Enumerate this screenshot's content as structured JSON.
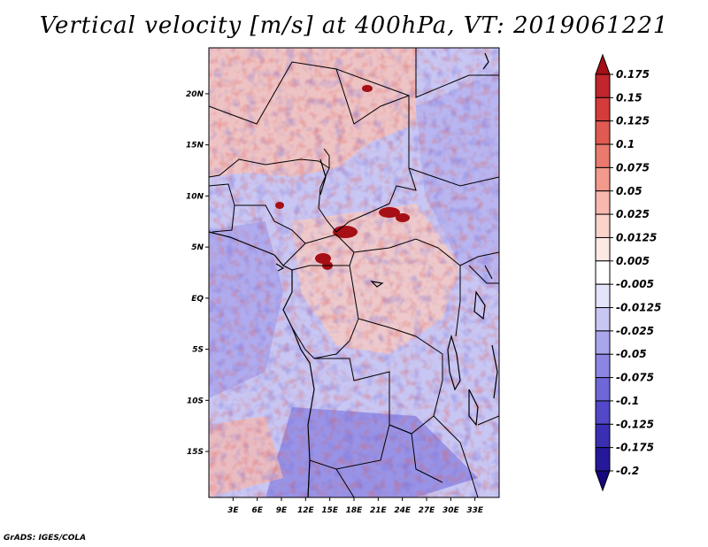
{
  "title": "Vertical velocity [m/s] at 400hPa, VT: 2019061221",
  "credit": "GrADS: IGES/COLA",
  "map": {
    "lon_range": [
      0,
      36
    ],
    "lat_range": [
      -19.5,
      24.5
    ],
    "lon_ticks": [
      "3E",
      "6E",
      "9E",
      "12E",
      "15E",
      "18E",
      "21E",
      "24E",
      "27E",
      "30E",
      "33E"
    ],
    "lat_ticks": [
      "20N",
      "15N",
      "10N",
      "5N",
      "EQ",
      "5S",
      "10S",
      "15S"
    ]
  },
  "colorbar": {
    "labels": [
      "0.175",
      "0.15",
      "0.125",
      "0.1",
      "0.075",
      "0.05",
      "0.025",
      "0.0125",
      "0.005",
      "-0.005",
      "-0.0125",
      "-0.025",
      "-0.05",
      "-0.075",
      "-0.1",
      "-0.125",
      "-0.175",
      "-0.2"
    ],
    "colors": [
      "#a50f15",
      "#c0262b",
      "#d33c3a",
      "#e05a52",
      "#ea7a6e",
      "#f29a8c",
      "#f7b8ad",
      "#fbd3cb",
      "#fde9e4",
      "#ffffff",
      "#e3e3fa",
      "#c8c6f3",
      "#aaa6ec",
      "#8c86e2",
      "#6f67d8",
      "#5248c8",
      "#3a2fb3",
      "#26189a",
      "#16087c"
    ]
  }
}
